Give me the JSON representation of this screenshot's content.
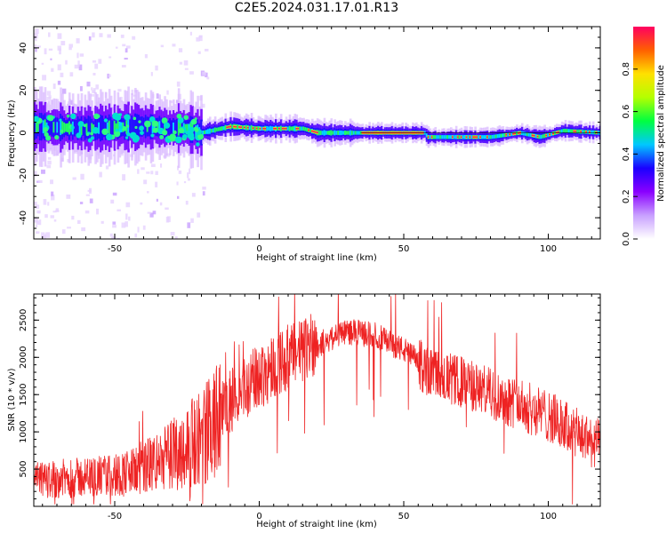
{
  "title": "C2E5.2024.031.17.01.R13",
  "chart_data": [
    {
      "type": "heatmap",
      "xlabel": "Height of straight line (km)",
      "ylabel": "Frequency (Hz)",
      "xlim": [
        -78,
        118
      ],
      "ylim": [
        -50,
        50
      ],
      "xticks": [
        -50,
        0,
        50,
        100
      ],
      "yticks": [
        -40,
        -20,
        0,
        20,
        40
      ],
      "colorbar": {
        "label": "Normalized spectral amplitude",
        "range": [
          0,
          1
        ],
        "ticks": [
          "0.0",
          "0.2",
          "0.4",
          "0.6",
          "0.8"
        ],
        "colors": [
          "#ffffff",
          "#c8a0ff",
          "#8a00ff",
          "#1a00ff",
          "#00c8ff",
          "#00ff40",
          "#b4ff00",
          "#ffe000",
          "#ff6000",
          "#ff0060"
        ]
      },
      "centerline": [
        {
          "x": -78,
          "y": 3
        },
        {
          "x": -60,
          "y": 2
        },
        {
          "x": -40,
          "y": 3
        },
        {
          "x": -25,
          "y": 2
        },
        {
          "x": -20,
          "y": 0
        },
        {
          "x": -10,
          "y": 3
        },
        {
          "x": 0,
          "y": 2
        },
        {
          "x": 15,
          "y": 2
        },
        {
          "x": 20,
          "y": 0
        },
        {
          "x": 35,
          "y": 0
        },
        {
          "x": 57,
          "y": 0
        },
        {
          "x": 58,
          "y": -2
        },
        {
          "x": 80,
          "y": -2
        },
        {
          "x": 90,
          "y": 0
        },
        {
          "x": 97,
          "y": -2
        },
        {
          "x": 105,
          "y": 1
        },
        {
          "x": 118,
          "y": 0
        }
      ]
    },
    {
      "type": "line",
      "xlabel": "Height of straight line (km)",
      "ylabel": "SNR (10 * v/v)",
      "xlim": [
        -78,
        118
      ],
      "ylim": [
        0,
        2850
      ],
      "xticks": [
        -50,
        0,
        50,
        100
      ],
      "yticks": [
        500,
        1000,
        1500,
        2000,
        2500
      ],
      "color": "#ee2222",
      "series": [
        {
          "values_envelope": [
            {
              "x": -78,
              "y": 350
            },
            {
              "x": -65,
              "y": 380
            },
            {
              "x": -55,
              "y": 400
            },
            {
              "x": -45,
              "y": 450
            },
            {
              "x": -35,
              "y": 600
            },
            {
              "x": -25,
              "y": 800
            },
            {
              "x": -15,
              "y": 1100
            },
            {
              "x": -5,
              "y": 1500
            },
            {
              "x": 5,
              "y": 1800
            },
            {
              "x": 15,
              "y": 2000
            },
            {
              "x": 22,
              "y": 2200
            },
            {
              "x": 30,
              "y": 2350
            },
            {
              "x": 40,
              "y": 2300
            },
            {
              "x": 50,
              "y": 2100
            },
            {
              "x": 55,
              "y": 1950
            },
            {
              "x": 60,
              "y": 1800
            },
            {
              "x": 70,
              "y": 1700
            },
            {
              "x": 80,
              "y": 1550
            },
            {
              "x": 90,
              "y": 1400
            },
            {
              "x": 100,
              "y": 1250
            },
            {
              "x": 110,
              "y": 1000
            },
            {
              "x": 118,
              "y": 850
            }
          ]
        }
      ]
    }
  ]
}
